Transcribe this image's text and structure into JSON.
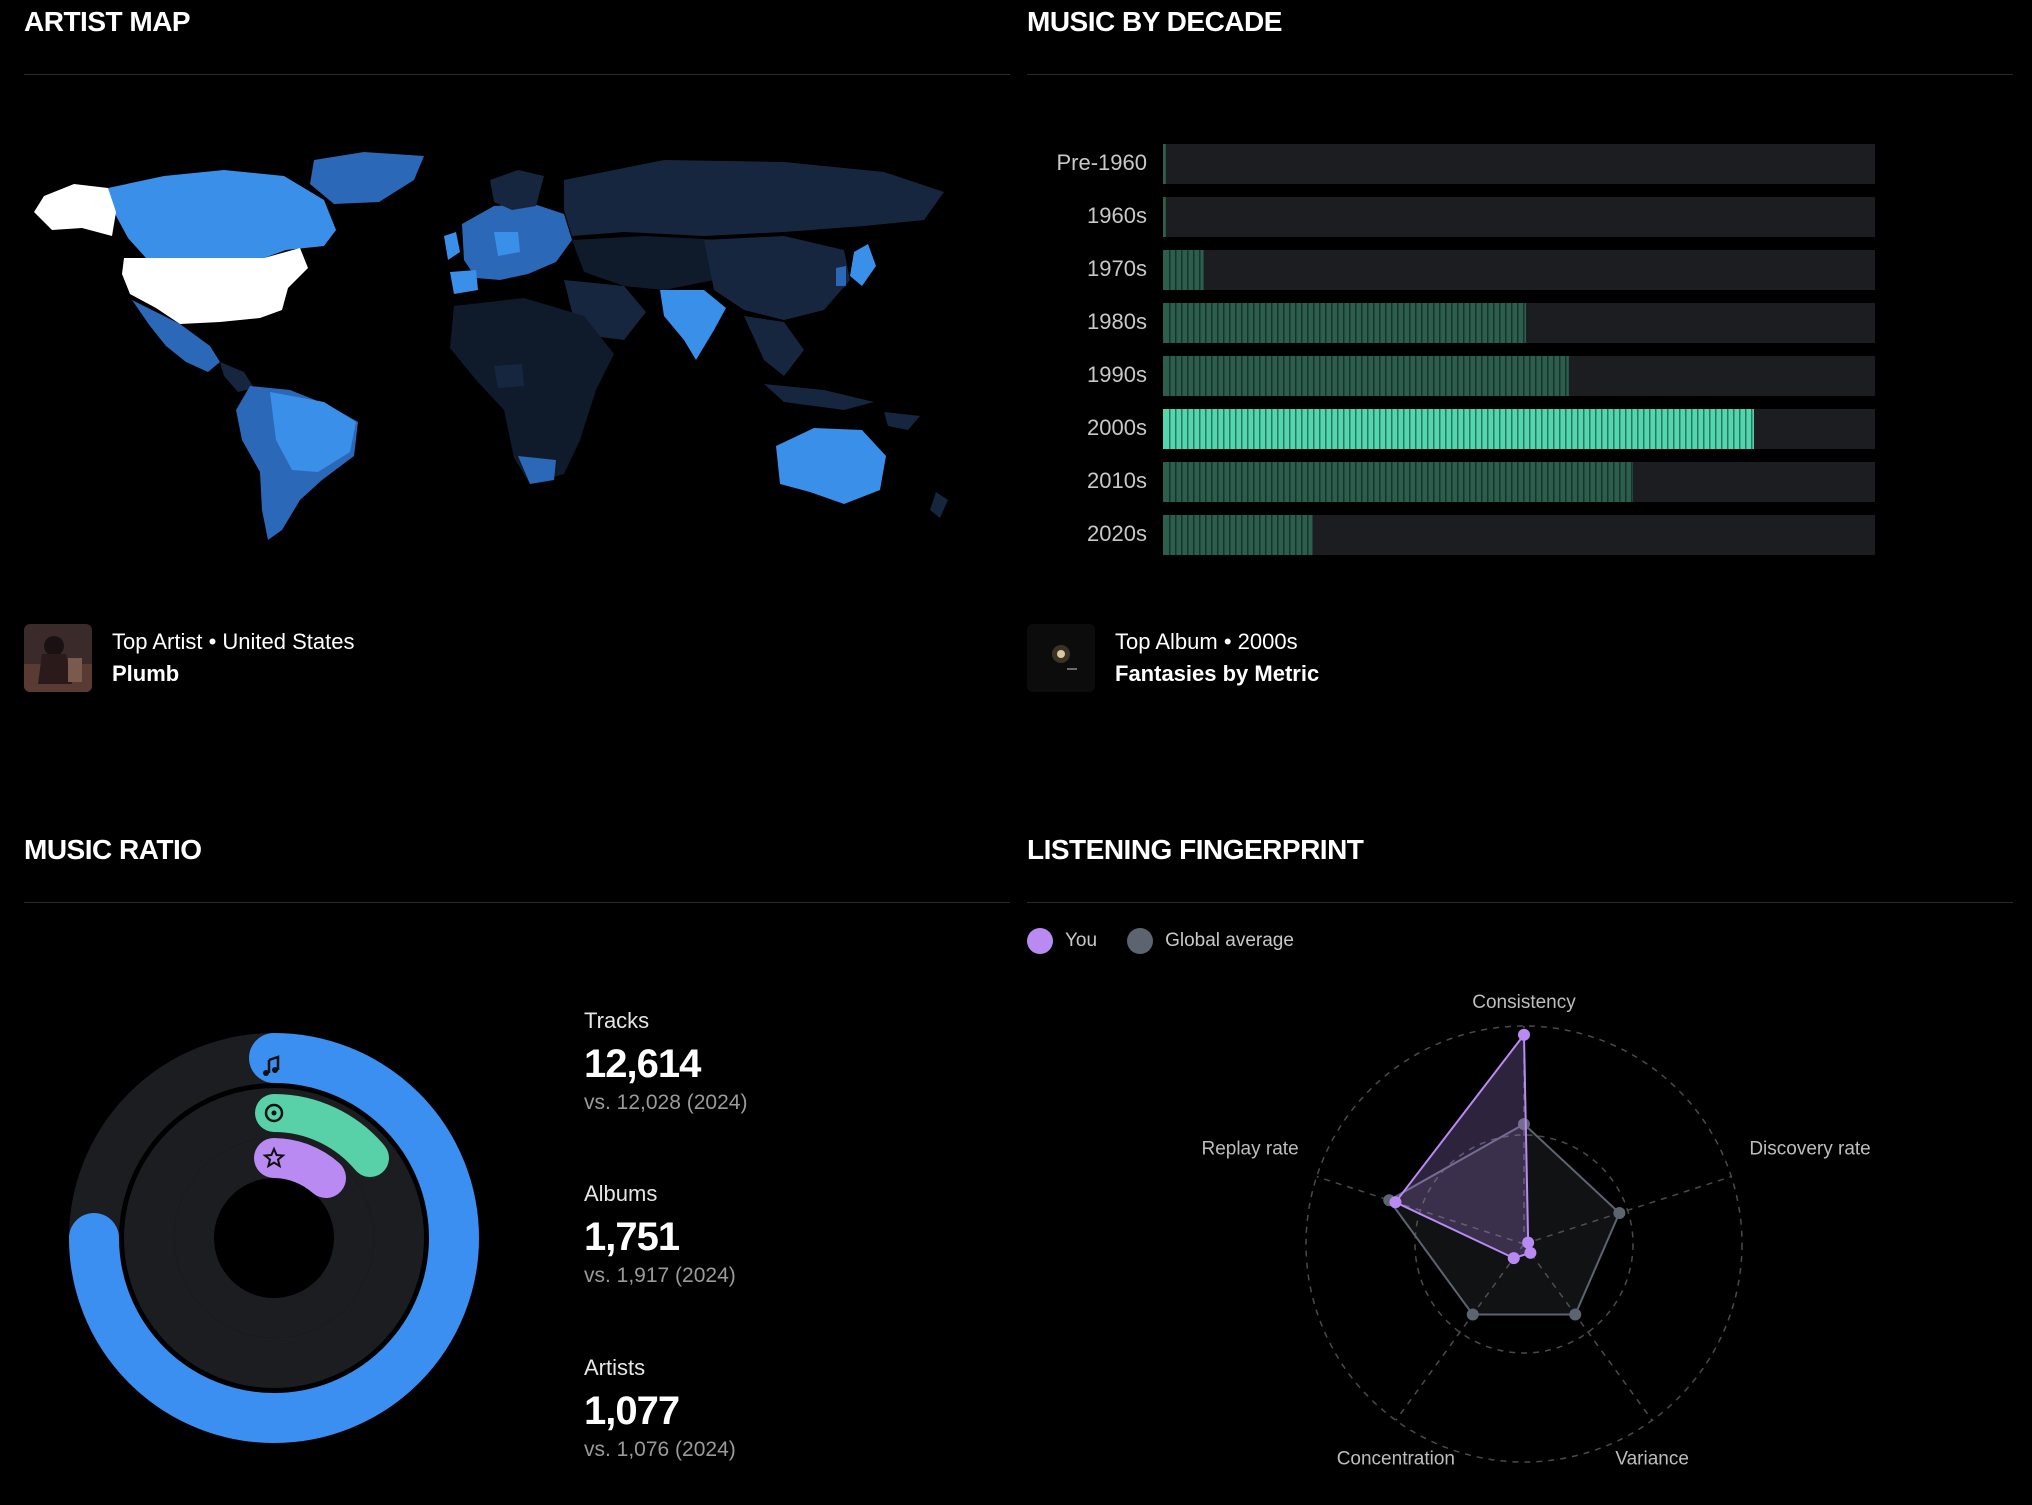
{
  "artist_map": {
    "title": "ARTIST MAP",
    "featured_caption": "Top Artist • United States",
    "featured_name": "Plumb",
    "colors": {
      "top": "#ffffff",
      "high": "#3a8fe8",
      "mid": "#2c68b8",
      "low": "#17263f",
      "none": "#0f1a2b"
    }
  },
  "music_by_decade": {
    "title": "MUSIC BY DECADE",
    "featured_caption": "Top Album • 2000s",
    "featured_name": "Fantasies by Metric",
    "highlight_decade": "2000s"
  },
  "music_ratio": {
    "title": "MUSIC RATIO",
    "stats": [
      {
        "label": "Tracks",
        "value": "12,614",
        "compare": "vs. 12,028 (2024)",
        "icon": "music-note-icon",
        "color": "#3b8ff0"
      },
      {
        "label": "Albums",
        "value": "1,751",
        "compare": "vs. 1,917 (2024)",
        "icon": "album-icon",
        "color": "#58d0a8"
      },
      {
        "label": "Artists",
        "value": "1,077",
        "compare": "vs. 1,076 (2024)",
        "icon": "star-icon",
        "color": "#b98af2"
      }
    ]
  },
  "listening_fingerprint": {
    "title": "LISTENING FINGERPRINT",
    "legend": [
      {
        "label": "You",
        "color": "#b98af2"
      },
      {
        "label": "Global average",
        "color": "#5c6470"
      }
    ]
  },
  "chart_data": [
    {
      "type": "bar",
      "orientation": "horizontal",
      "categories": [
        "Pre-1960",
        "1960s",
        "1970s",
        "1980s",
        "1990s",
        "2000s",
        "2010s",
        "2020s"
      ],
      "values": [
        0.4,
        0.4,
        5.7,
        51,
        57,
        83,
        66,
        21
      ],
      "xlim": [
        0,
        100
      ],
      "highlight": "2000s",
      "colors": {
        "bar": "#2c5e4e",
        "highlight": "#52d6ae",
        "track": "#1b1d20"
      }
    },
    {
      "type": "radar",
      "axes": [
        "Consistency",
        "Discovery rate",
        "Variance",
        "Concentration",
        "Replay rate"
      ],
      "range": [
        0,
        1
      ],
      "series": [
        {
          "name": "You",
          "values": [
            0.96,
            0.02,
            0.05,
            0.08,
            0.62
          ],
          "color": "#b98af2"
        },
        {
          "name": "Global average",
          "values": [
            0.55,
            0.46,
            0.4,
            0.4,
            0.65
          ],
          "color": "#5c6470"
        }
      ]
    }
  ]
}
